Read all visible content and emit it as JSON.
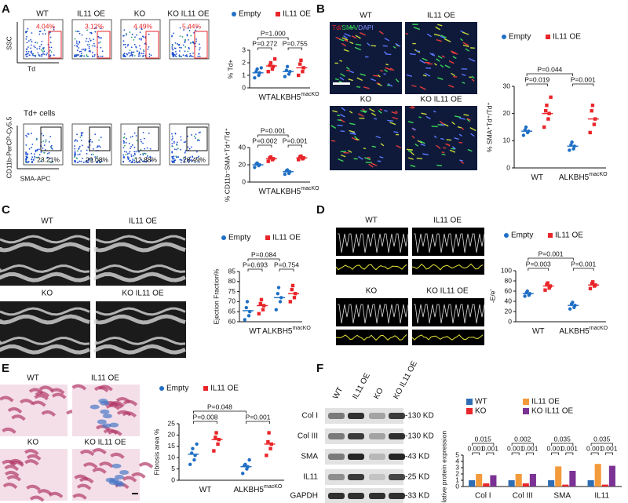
{
  "A": {
    "label": "A",
    "flow": {
      "ylabel": "SSC",
      "xlabel": "Td",
      "plots": [
        {
          "name": "WT",
          "pct": "4.04%"
        },
        {
          "name": "IL11 OE",
          "pct": "3.12%"
        },
        {
          "name": "KO",
          "pct": "4.49%"
        },
        {
          "name": "KO IL11 OE",
          "pct": "5.44%"
        }
      ]
    },
    "gated": {
      "title": "Td+ cells",
      "ylabel": "CD11b-PerCP-Cy5.5",
      "xlabel": "SMA-APC",
      "pcts": [
        "23.21%",
        "29.08%",
        "12.88%",
        "28.49%"
      ]
    },
    "legend": [
      {
        "name": "Empty",
        "color": "#1f6fc5",
        "marker": "circle"
      },
      {
        "name": "IL11 OE",
        "color": "#e8262a",
        "marker": "square"
      }
    ],
    "charts": [
      {
        "type": "dot",
        "ylabel": "% Td+",
        "ylim": [
          0,
          3
        ],
        "yticks": [
          0,
          1,
          2,
          3
        ],
        "categories": [
          {
            "label": "WT"
          },
          {
            "label": "ALKBH5",
            "sup": "macKO"
          }
        ],
        "series": [
          {
            "color": "#1f6fc5",
            "marker": "circle",
            "values": [
              [
                0.8,
                1.0,
                1.2,
                1.3,
                1.5,
                1.6
              ],
              [
                0.9,
                1.1,
                1.3,
                1.4,
                1.7
              ]
            ],
            "means": [
              1.2,
              1.3
            ]
          },
          {
            "color": "#e8262a",
            "marker": "square",
            "values": [
              [
                1.3,
                1.5,
                1.7,
                1.8,
                2.0,
                2.3
              ],
              [
                1.0,
                1.3,
                1.6,
                1.9,
                2.2
              ]
            ],
            "means": [
              1.75,
              1.6
            ]
          }
        ],
        "comparisons": [
          {
            "label": "P=0.272",
            "a": [
              0,
              0
            ],
            "b": [
              0,
              1
            ]
          },
          {
            "label": "P=0.755",
            "a": [
              1,
              0
            ],
            "b": [
              1,
              1
            ]
          },
          {
            "label": "P=1.000",
            "a": [
              0,
              0
            ],
            "b": [
              1,
              0
            ]
          }
        ]
      },
      {
        "type": "dot",
        "ylabel": "% CD11b⁻SMA⁺Td⁺/Td⁺",
        "ylim": [
          0,
          40
        ],
        "yticks": [
          0,
          20,
          40
        ],
        "categories": [
          {
            "label": "WT"
          },
          {
            "label": "ALKBH5",
            "sup": "macKO"
          }
        ],
        "series": [
          {
            "color": "#1f6fc5",
            "marker": "circle",
            "values": [
              [
                17,
                19,
                20,
                21,
                22
              ],
              [
                9,
                10,
                12,
                13,
                14
              ]
            ],
            "means": [
              20,
              12
            ]
          },
          {
            "color": "#e8262a",
            "marker": "square",
            "values": [
              [
                24,
                26,
                27,
                28,
                29
              ],
              [
                26,
                27,
                28,
                29,
                30
              ]
            ],
            "means": [
              27,
              28
            ]
          }
        ],
        "comparisons": [
          {
            "label": "P=0.002",
            "a": [
              0,
              0
            ],
            "b": [
              0,
              1
            ]
          },
          {
            "label": "P=0.001",
            "a": [
              1,
              0
            ],
            "b": [
              1,
              1
            ]
          },
          {
            "label": "P=0.001",
            "a": [
              0,
              0
            ],
            "b": [
              1,
              0
            ]
          }
        ]
      }
    ]
  },
  "B": {
    "label": "B",
    "stain": [
      "Td/",
      "SMA/",
      "DAPI"
    ],
    "images": [
      "WT",
      "IL11 OE",
      "KO",
      "KO IL11 OE"
    ],
    "legend": [
      {
        "name": "Empty",
        "color": "#1f6fc5",
        "marker": "circle"
      },
      {
        "name": "IL11 OE",
        "color": "#e8262a",
        "marker": "square"
      }
    ],
    "charts": [
      {
        "type": "dot",
        "ylabel": "% SMA⁺Td⁺/Td⁺",
        "ylim": [
          0,
          30
        ],
        "yticks": [
          0,
          10,
          20,
          30
        ],
        "categories": [
          {
            "label": "WT"
          },
          {
            "label": "ALKBH5",
            "sup": "macKO"
          }
        ],
        "series": [
          {
            "color": "#1f6fc5",
            "marker": "circle",
            "values": [
              [
                12,
                13,
                13.5,
                14,
                15
              ],
              [
                6.5,
                7,
                8,
                8.5,
                9.5
              ]
            ],
            "means": [
              13.5,
              8
            ]
          },
          {
            "color": "#e8262a",
            "marker": "square",
            "values": [
              [
                15,
                18,
                20,
                21,
                23,
                26
              ],
              [
                13,
                16,
                18,
                21,
                23
              ]
            ],
            "means": [
              20,
              18
            ]
          }
        ],
        "comparisons": [
          {
            "label": "P=0.019",
            "a": [
              0,
              0
            ],
            "b": [
              0,
              1
            ]
          },
          {
            "label": "P=0.001",
            "a": [
              1,
              0
            ],
            "b": [
              1,
              1
            ]
          },
          {
            "label": "P=0.044",
            "a": [
              0,
              0
            ],
            "b": [
              1,
              0
            ]
          }
        ]
      }
    ]
  },
  "C": {
    "label": "C",
    "images": [
      "WT",
      "IL11 OE",
      "KO",
      "KO IL11 OE"
    ],
    "legend": [
      {
        "name": "Empty",
        "color": "#1f6fc5",
        "marker": "circle"
      },
      {
        "name": "IL11 OE",
        "color": "#e8262a",
        "marker": "square"
      }
    ],
    "charts": [
      {
        "type": "dot",
        "ylabel": "Ejection Fraction%",
        "ylim": [
          60,
          85
        ],
        "yticks": [
          60,
          65,
          70,
          75,
          80,
          85
        ],
        "categories": [
          {
            "label": "WT"
          },
          {
            "label": "ALKBH5",
            "sup": "macKO"
          }
        ],
        "series": [
          {
            "color": "#1f6fc5",
            "marker": "circle",
            "values": [
              [
                61,
                63,
                65,
                67,
                70
              ],
              [
                66,
                70,
                72,
                74,
                77
              ]
            ],
            "means": [
              65.5,
              72
            ]
          },
          {
            "color": "#e8262a",
            "marker": "square",
            "values": [
              [
                64,
                66,
                68,
                69,
                71
              ],
              [
                70,
                72,
                74,
                76,
                78
              ]
            ],
            "means": [
              68,
              74
            ]
          }
        ],
        "comparisons": [
          {
            "label": "P=0.693",
            "a": [
              0,
              0
            ],
            "b": [
              0,
              1
            ]
          },
          {
            "label": "P=0.754",
            "a": [
              1,
              0
            ],
            "b": [
              1,
              1
            ]
          },
          {
            "label": "P=0.084",
            "a": [
              0,
              0
            ],
            "b": [
              1,
              0
            ]
          }
        ]
      }
    ]
  },
  "D": {
    "label": "D",
    "images": [
      "WT",
      "IL11 OE",
      "KO",
      "KO IL11 OE"
    ],
    "legend": [
      {
        "name": "Empty",
        "color": "#1f6fc5",
        "marker": "circle"
      },
      {
        "name": "IL11 OE",
        "color": "#e8262a",
        "marker": "square"
      }
    ],
    "charts": [
      {
        "type": "dot",
        "ylabel": "-E/e'",
        "ylim": [
          0,
          100
        ],
        "yticks": [
          0,
          20,
          40,
          60,
          80,
          100
        ],
        "categories": [
          {
            "label": "WT"
          },
          {
            "label": "ALKBH5",
            "sup": "macKO"
          }
        ],
        "series": [
          {
            "color": "#1f6fc5",
            "marker": "circle",
            "values": [
              [
                50,
                52,
                55,
                57,
                60
              ],
              [
                25,
                28,
                32,
                35,
                38
              ]
            ],
            "means": [
              55,
              32
            ]
          },
          {
            "color": "#e8262a",
            "marker": "square",
            "values": [
              [
                62,
                66,
                70,
                73,
                76
              ],
              [
                65,
                70,
                72,
                75,
                78
              ]
            ],
            "means": [
              70,
              72
            ]
          }
        ],
        "comparisons": [
          {
            "label": "P=0.003",
            "a": [
              0,
              0
            ],
            "b": [
              0,
              1
            ]
          },
          {
            "label": "P=0.001",
            "a": [
              1,
              0
            ],
            "b": [
              1,
              1
            ]
          },
          {
            "label": "P=0.001",
            "a": [
              0,
              0
            ],
            "b": [
              1,
              0
            ]
          }
        ]
      }
    ]
  },
  "E": {
    "label": "E",
    "images": [
      "WT",
      "IL11 OE",
      "KO",
      "KO IL11 OE"
    ],
    "legend": [
      {
        "name": "Empty",
        "color": "#1f6fc5",
        "marker": "circle"
      },
      {
        "name": "IL11 OE",
        "color": "#e8262a",
        "marker": "square"
      }
    ],
    "charts": [
      {
        "type": "dot",
        "ylabel": "Fibrosis area %",
        "ylim": [
          0,
          25
        ],
        "yticks": [
          0,
          5,
          10,
          15,
          20,
          25
        ],
        "categories": [
          {
            "label": "WT"
          },
          {
            "label": "ALKBH5",
            "sup": "macKO"
          }
        ],
        "series": [
          {
            "color": "#1f6fc5",
            "marker": "circle",
            "values": [
              [
                7,
                9,
                11,
                12,
                14,
                16
              ],
              [
                3,
                5,
                6,
                6.5,
                7,
                9
              ]
            ],
            "means": [
              11.5,
              6
            ]
          },
          {
            "color": "#e8262a",
            "marker": "square",
            "values": [
              [
                13,
                16,
                18,
                19,
                21
              ],
              [
                11,
                14,
                16,
                17,
                21
              ]
            ],
            "means": [
              18,
              16
            ]
          }
        ],
        "comparisons": [
          {
            "label": "P=0.008",
            "a": [
              0,
              0
            ],
            "b": [
              0,
              1
            ]
          },
          {
            "label": "P=0.001",
            "a": [
              1,
              0
            ],
            "b": [
              1,
              1
            ]
          },
          {
            "label": "P=0.048",
            "a": [
              0,
              0
            ],
            "b": [
              1,
              0
            ]
          }
        ]
      }
    ]
  },
  "F": {
    "label": "F",
    "lanes": [
      "WT",
      "IL11 OE",
      "KO",
      "KO IL11 OE"
    ],
    "blots": [
      {
        "name": "Col I",
        "size": "-130 KD"
      },
      {
        "name": "Col III",
        "size": "-130 KD"
      },
      {
        "name": "SMA",
        "size": "-43 KD"
      },
      {
        "name": "IL11",
        "size": "-25 KD"
      },
      {
        "name": "GAPDH",
        "size": "-33 KD"
      }
    ],
    "chart": {
      "type": "bar",
      "ylabel": "Relative protein expression",
      "ylim": [
        0,
        5
      ],
      "yticks": [
        0,
        1,
        2,
        3,
        4,
        5
      ],
      "categories": [
        "Col I",
        "Col III",
        "SMA",
        "IL11"
      ],
      "series": [
        {
          "name": "WT",
          "color": "#2f6db5",
          "values": [
            1,
            1,
            1,
            1
          ]
        },
        {
          "name": "IL11 OE",
          "color": "#f39a3b",
          "values": [
            2,
            2,
            3.2,
            3.6
          ]
        },
        {
          "name": "KO",
          "color": "#e8262a",
          "values": [
            0.5,
            0.5,
            0.3,
            0.3
          ]
        },
        {
          "name": "KO IL11 OE",
          "color": "#7b3294",
          "values": [
            1.8,
            2,
            2.5,
            3.3
          ]
        }
      ],
      "comparisons": [
        {
          "label": "0.015",
          "group": 0,
          "a": 0,
          "b": 3
        },
        {
          "label": "0.001",
          "group": 0,
          "a": 0,
          "b": 1
        },
        {
          "label": "0.001",
          "group": 0,
          "a": 2,
          "b": 3
        },
        {
          "label": "0.002",
          "group": 1,
          "a": 0,
          "b": 3
        },
        {
          "label": "0.001",
          "group": 1,
          "a": 0,
          "b": 1
        },
        {
          "label": "0.001",
          "group": 1,
          "a": 2,
          "b": 3
        },
        {
          "label": "0.035",
          "group": 2,
          "a": 0,
          "b": 3
        },
        {
          "label": "0.001",
          "group": 2,
          "a": 0,
          "b": 1
        },
        {
          "label": "0.001",
          "group": 2,
          "a": 2,
          "b": 3
        },
        {
          "label": "0.035",
          "group": 3,
          "a": 0,
          "b": 3
        },
        {
          "label": "0.001",
          "group": 3,
          "a": 0,
          "b": 1
        },
        {
          "label": "0.001",
          "group": 3,
          "a": 2,
          "b": 3
        }
      ]
    }
  }
}
